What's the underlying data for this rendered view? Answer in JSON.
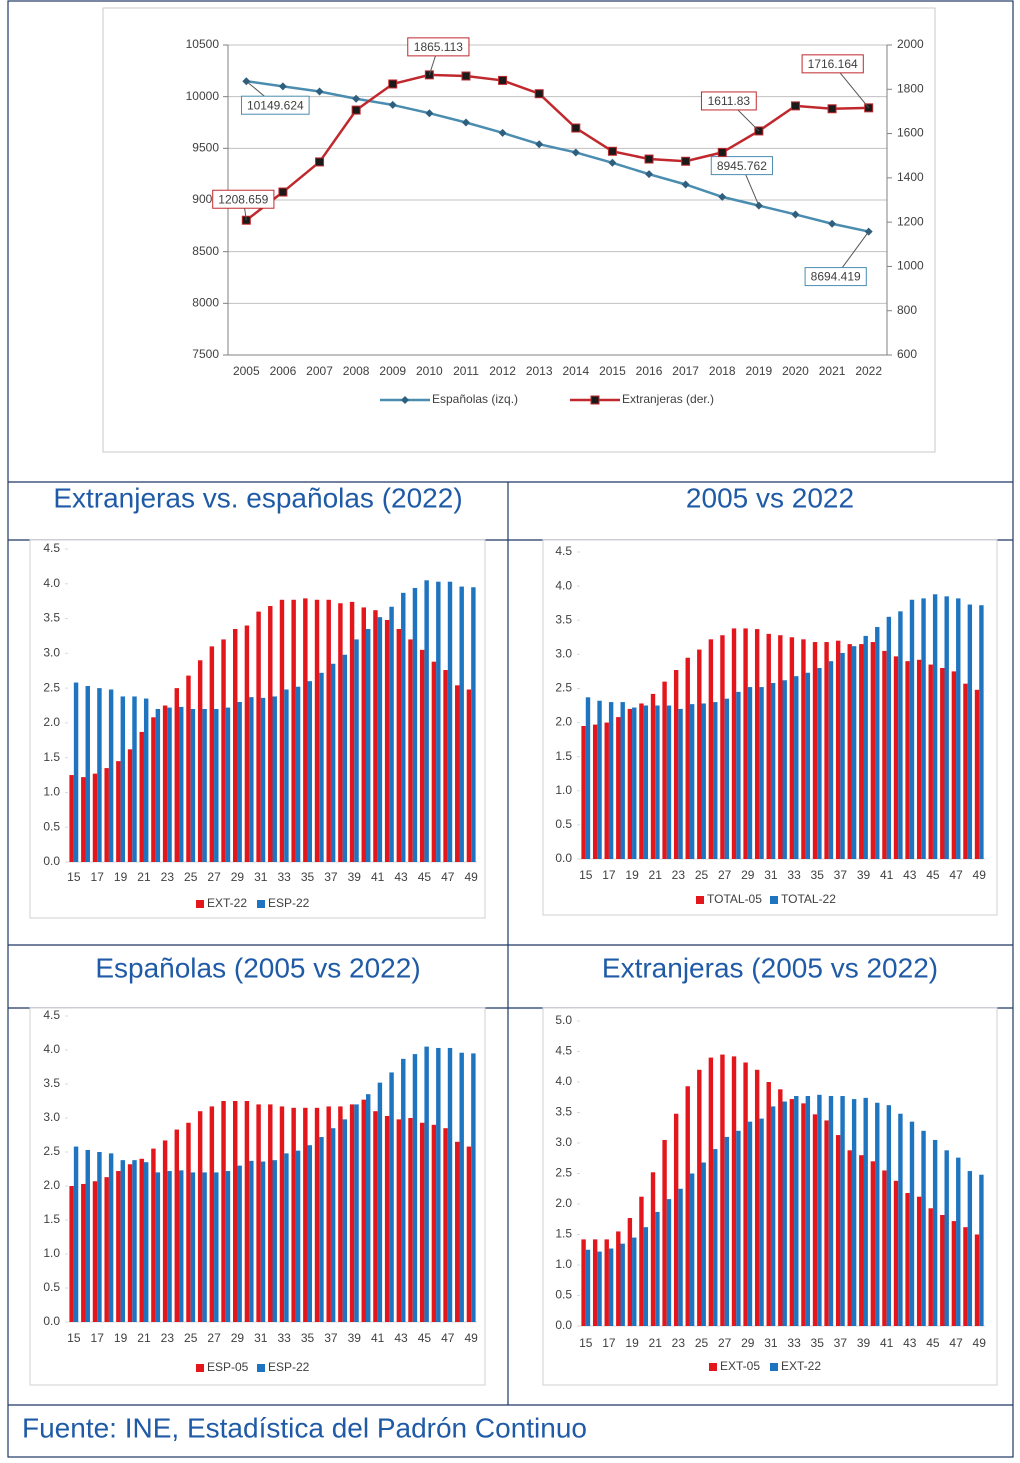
{
  "chart_data": [
    {
      "type": "line",
      "categories": [
        "2005",
        "2006",
        "2007",
        "2008",
        "2009",
        "2010",
        "2011",
        "2012",
        "2013",
        "2014",
        "2015",
        "2016",
        "2017",
        "2018",
        "2019",
        "2020",
        "2021",
        "2022"
      ],
      "series": [
        {
          "name": "Españolas (izq.)",
          "color": "#4a8db0",
          "axis": "y",
          "data_labels": [
            0,
            14,
            17
          ],
          "values": [
            10149.624,
            10100,
            10050,
            9980,
            9920,
            9840,
            9750,
            9650,
            9540,
            9460,
            9360,
            9250,
            9150,
            9030,
            8945.762,
            8860,
            8770,
            8694.419
          ]
        },
        {
          "name": "Extranjeras (der.)",
          "color": "#c0282d",
          "axis": "y2",
          "data_labels": [
            0,
            5,
            14,
            17
          ],
          "values": [
            1208.659,
            1336,
            1472,
            1706,
            1824,
            1865.113,
            1860,
            1840,
            1780,
            1625,
            1520,
            1485,
            1475,
            1515,
            1611.83,
            1725,
            1712,
            1716.164
          ]
        }
      ],
      "ylim": [
        7500,
        10500
      ],
      "yticks": [
        7500,
        8000,
        8500,
        9000,
        9500,
        10000,
        10500
      ],
      "y2lim": [
        600,
        2000
      ],
      "y2ticks": [
        600,
        800,
        1000,
        1200,
        1400,
        1600,
        1800,
        2000
      ],
      "grid": true,
      "legend": "bottom"
    },
    {
      "type": "bar",
      "categories": [
        15,
        null,
        17,
        null,
        19,
        null,
        21,
        null,
        23,
        null,
        25,
        null,
        27,
        null,
        29,
        null,
        31,
        null,
        33,
        null,
        35,
        null,
        37,
        null,
        39,
        null,
        41,
        null,
        43,
        null,
        45,
        null,
        47,
        null,
        49
      ],
      "series": [
        {
          "name": "EXT-22",
          "color": "#e3161c",
          "values": [
            1.25,
            1.22,
            1.27,
            1.35,
            1.45,
            1.62,
            1.87,
            2.08,
            2.25,
            2.5,
            2.68,
            2.9,
            3.1,
            3.2,
            3.35,
            3.4,
            3.6,
            3.68,
            3.77,
            3.77,
            3.79,
            3.77,
            3.77,
            3.72,
            3.74,
            3.66,
            3.62,
            3.48,
            3.35,
            3.2,
            3.05,
            2.88,
            2.76,
            2.54,
            2.48
          ]
        },
        {
          "name": "ESP-22",
          "color": "#1f74bf",
          "values": [
            2.58,
            2.53,
            2.5,
            2.48,
            2.38,
            2.38,
            2.35,
            2.2,
            2.22,
            2.23,
            2.2,
            2.2,
            2.2,
            2.22,
            2.3,
            2.37,
            2.36,
            2.38,
            2.48,
            2.52,
            2.6,
            2.72,
            2.85,
            2.98,
            3.2,
            3.35,
            3.52,
            3.67,
            3.87,
            3.94,
            4.05,
            4.03,
            4.03,
            3.96,
            3.95
          ]
        }
      ],
      "ylim": [
        0,
        4.5
      ],
      "yticks": [
        {
          "value": 0,
          "label": "0.0"
        },
        {
          "value": 0.5,
          "label": "0.5"
        },
        {
          "value": 1,
          "label": "1.0"
        },
        {
          "value": 1.5,
          "label": "1.5"
        },
        {
          "value": 2,
          "label": "2.0"
        },
        {
          "value": 2.5,
          "label": "2.5"
        },
        {
          "value": 3,
          "label": "3.0"
        },
        {
          "value": 3.5,
          "label": "3.5"
        },
        {
          "value": 4,
          "label": "4.0"
        },
        {
          "value": 4.5,
          "label": "4.5"
        }
      ],
      "legend": "bottom"
    },
    {
      "type": "bar",
      "categories": [
        15,
        null,
        17,
        null,
        19,
        null,
        21,
        null,
        23,
        null,
        25,
        null,
        27,
        null,
        29,
        null,
        31,
        null,
        33,
        null,
        35,
        null,
        37,
        null,
        39,
        null,
        41,
        null,
        43,
        null,
        45,
        null,
        47,
        null,
        49
      ],
      "series": [
        {
          "name": "TOTAL-05",
          "color": "#e3161c",
          "values": [
            1.95,
            1.97,
            2.0,
            2.08,
            2.2,
            2.28,
            2.42,
            2.6,
            2.77,
            2.95,
            3.07,
            3.22,
            3.28,
            3.38,
            3.38,
            3.37,
            3.3,
            3.28,
            3.25,
            3.22,
            3.18,
            3.18,
            3.2,
            3.15,
            3.15,
            3.18,
            3.05,
            2.97,
            2.9,
            2.92,
            2.85,
            2.8,
            2.75,
            2.57,
            2.48
          ]
        },
        {
          "name": "TOTAL-22",
          "color": "#1f74bf",
          "values": [
            2.37,
            2.32,
            2.3,
            2.3,
            2.22,
            2.25,
            2.25,
            2.25,
            2.2,
            2.27,
            2.28,
            2.3,
            2.35,
            2.45,
            2.52,
            2.52,
            2.58,
            2.62,
            2.68,
            2.73,
            2.8,
            2.9,
            3.02,
            3.12,
            3.27,
            3.4,
            3.55,
            3.63,
            3.8,
            3.82,
            3.88,
            3.85,
            3.82,
            3.73,
            3.72
          ]
        }
      ],
      "ylim": [
        0,
        4.5
      ],
      "yticks": [
        {
          "value": 0,
          "label": "0.0"
        },
        {
          "value": 0.5,
          "label": "0.5"
        },
        {
          "value": 1,
          "label": "1.0"
        },
        {
          "value": 1.5,
          "label": "1.5"
        },
        {
          "value": 2,
          "label": "2.0"
        },
        {
          "value": 2.5,
          "label": "2.5"
        },
        {
          "value": 3,
          "label": "3.0"
        },
        {
          "value": 3.5,
          "label": "3.5"
        },
        {
          "value": 4,
          "label": "4.0"
        },
        {
          "value": 4.5,
          "label": "4.5"
        }
      ],
      "legend": "bottom"
    },
    {
      "type": "bar",
      "categories": [
        15,
        null,
        17,
        null,
        19,
        null,
        21,
        null,
        23,
        null,
        25,
        null,
        27,
        null,
        29,
        null,
        31,
        null,
        33,
        null,
        35,
        null,
        37,
        null,
        39,
        null,
        41,
        null,
        43,
        null,
        45,
        null,
        47,
        null,
        49
      ],
      "series": [
        {
          "name": "ESP-05",
          "color": "#e3161c",
          "values": [
            2.0,
            2.03,
            2.07,
            2.13,
            2.22,
            2.32,
            2.4,
            2.55,
            2.67,
            2.83,
            2.93,
            3.1,
            3.17,
            3.25,
            3.25,
            3.25,
            3.2,
            3.2,
            3.17,
            3.15,
            3.15,
            3.15,
            3.17,
            3.17,
            3.2,
            3.27,
            3.1,
            3.03,
            2.98,
            3.0,
            2.93,
            2.9,
            2.85,
            2.65,
            2.58
          ]
        },
        {
          "name": "ESP-22",
          "color": "#1f74bf",
          "values": [
            2.58,
            2.53,
            2.5,
            2.48,
            2.38,
            2.38,
            2.35,
            2.2,
            2.22,
            2.23,
            2.2,
            2.2,
            2.2,
            2.22,
            2.3,
            2.37,
            2.36,
            2.38,
            2.48,
            2.52,
            2.6,
            2.72,
            2.85,
            2.98,
            3.2,
            3.35,
            3.52,
            3.67,
            3.87,
            3.94,
            4.05,
            4.03,
            4.03,
            3.96,
            3.95
          ]
        }
      ],
      "ylim": [
        0,
        4.5
      ],
      "yticks": [
        {
          "value": 0,
          "label": "0.0"
        },
        {
          "value": 0.5,
          "label": "0.5"
        },
        {
          "value": 1,
          "label": "1.0"
        },
        {
          "value": 1.5,
          "label": "1.5"
        },
        {
          "value": 2,
          "label": "2.0"
        },
        {
          "value": 2.5,
          "label": "2.5"
        },
        {
          "value": 3,
          "label": "3.0"
        },
        {
          "value": 3.5,
          "label": "3.5"
        },
        {
          "value": 4,
          "label": "4.0"
        },
        {
          "value": 4.5,
          "label": "4.5"
        }
      ],
      "legend": "bottom"
    },
    {
      "type": "bar",
      "categories": [
        15,
        null,
        17,
        null,
        19,
        null,
        21,
        null,
        23,
        null,
        25,
        null,
        27,
        null,
        29,
        null,
        31,
        null,
        33,
        null,
        35,
        null,
        37,
        null,
        39,
        null,
        41,
        null,
        43,
        null,
        45,
        null,
        47,
        null,
        49
      ],
      "series": [
        {
          "name": "EXT-05",
          "color": "#e3161c",
          "values": [
            1.42,
            1.42,
            1.42,
            1.55,
            1.77,
            2.12,
            2.52,
            3.05,
            3.48,
            3.93,
            4.2,
            4.4,
            4.45,
            4.42,
            4.32,
            4.2,
            4.0,
            3.88,
            3.72,
            3.65,
            3.47,
            3.37,
            3.13,
            2.88,
            2.8,
            2.7,
            2.55,
            2.38,
            2.18,
            2.12,
            1.93,
            1.82,
            1.72,
            1.62,
            1.5
          ]
        },
        {
          "name": "EXT-22",
          "color": "#1f74bf",
          "values": [
            1.25,
            1.22,
            1.27,
            1.35,
            1.45,
            1.62,
            1.87,
            2.08,
            2.25,
            2.5,
            2.68,
            2.9,
            3.1,
            3.2,
            3.35,
            3.4,
            3.6,
            3.68,
            3.77,
            3.77,
            3.79,
            3.77,
            3.77,
            3.72,
            3.74,
            3.66,
            3.62,
            3.48,
            3.35,
            3.2,
            3.05,
            2.88,
            2.76,
            2.54,
            2.48
          ]
        }
      ],
      "ylim": [
        0,
        5
      ],
      "yticks": [
        {
          "value": 0,
          "label": "0.0"
        },
        {
          "value": 0.5,
          "label": "0.5"
        },
        {
          "value": 1,
          "label": "1.0"
        },
        {
          "value": 1.5,
          "label": "1.5"
        },
        {
          "value": 2,
          "label": "2.0"
        },
        {
          "value": 2.5,
          "label": "2.5"
        },
        {
          "value": 3,
          "label": "3.0"
        },
        {
          "value": 3.5,
          "label": "3.5"
        },
        {
          "value": 4,
          "label": "4.0"
        },
        {
          "value": 4.5,
          "label": "4.5"
        },
        {
          "value": 5,
          "label": "5.0"
        }
      ],
      "legend": "bottom"
    }
  ],
  "headers": [
    "Extranjeras vs. españolas (2022)",
    "2005 vs 2022",
    "Españolas (2005 vs 2022)",
    "Extranjeras (2005 vs 2022)"
  ],
  "footer": "Fuente: INE, Estadística del Padrón Continuo"
}
